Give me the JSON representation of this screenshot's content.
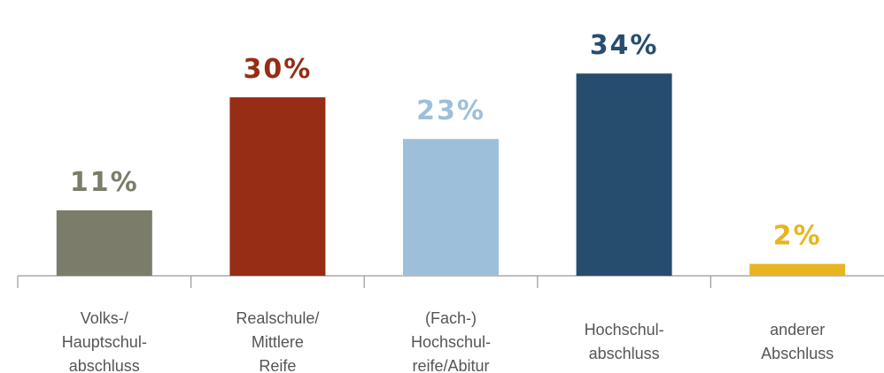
{
  "chart_data": {
    "type": "bar",
    "categories": [
      [
        "Volks-/",
        "Hauptschul-",
        "abschluss"
      ],
      [
        "Realschule/",
        "Mittlere",
        "Reife"
      ],
      [
        "(Fach-)",
        "Hochschul-",
        "reife/Abitur"
      ],
      [
        "Hochschul-",
        "abschluss"
      ],
      [
        "anderer",
        "Abschluss"
      ]
    ],
    "values": [
      11,
      30,
      23,
      34,
      2
    ],
    "value_labels": [
      "11%",
      "30%",
      "23%",
      "34%",
      "2%"
    ],
    "colors": [
      "#7b7c6a",
      "#962d14",
      "#9ebfd9",
      "#264d6e",
      "#e8b520"
    ]
  }
}
